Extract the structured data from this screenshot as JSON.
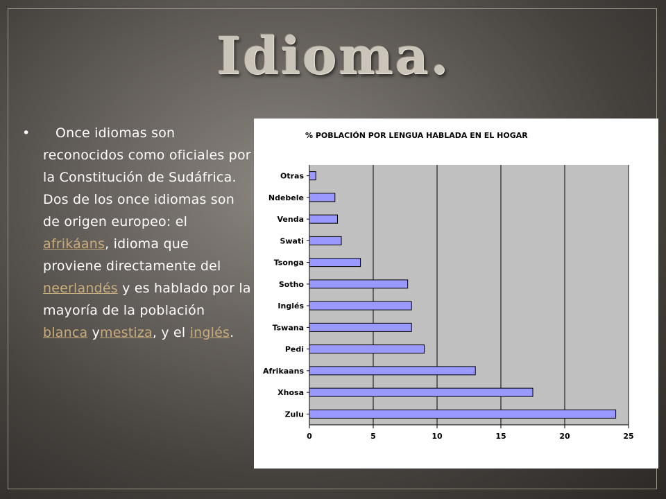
{
  "slide": {
    "title": "Idioma."
  },
  "body_text": {
    "bullet": "•",
    "t1": "Once idiomas son reconocidos como oficiales por la Constitución de Sudáfrica. Dos de los once idiomas son de origen europeo: el ",
    "link1": "afrikáans",
    "t2": ", idioma que proviene directamente del ",
    "link2": "neerlandés",
    "t3": " y es hablado por la mayoría de la población ",
    "link3": "blanca",
    "t4": " y",
    "link4": "mestiza",
    "t5": ", y el ",
    "link5": "inglés",
    "t6": "."
  },
  "colors": {
    "bar_fill": "#9999ff",
    "plot_area": "#c0c0c0",
    "link": "#c9ad7c"
  },
  "chart_data": {
    "type": "bar",
    "orientation": "horizontal",
    "title": "% POBLACIÓN POR LENGUA HABLADA EN EL HOGAR",
    "categories": [
      "Otras",
      "Ndebele",
      "Venda",
      "Swati",
      "Tsonga",
      "Sotho",
      "Inglés",
      "Tswana",
      "Pedi",
      "Afrikaans",
      "Xhosa",
      "Zulu"
    ],
    "values": [
      0.5,
      2.0,
      2.2,
      2.5,
      4.0,
      7.7,
      8.0,
      8.0,
      9.0,
      13.0,
      17.5,
      24.0
    ],
    "xlim": [
      0,
      25
    ],
    "xticks": [
      "0",
      "5",
      "10",
      "15",
      "20",
      "25"
    ],
    "grid": true,
    "legend": "none"
  }
}
